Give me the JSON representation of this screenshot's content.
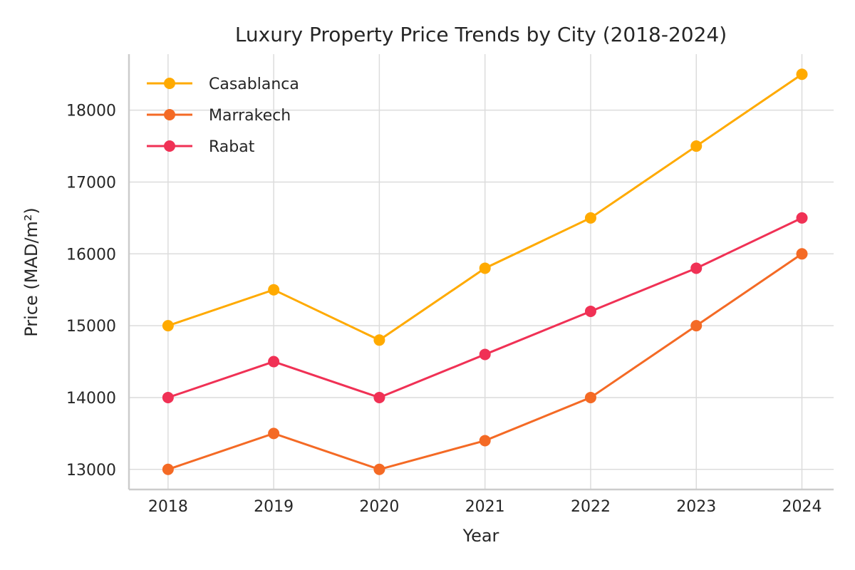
{
  "chart_data": {
    "type": "line",
    "title": "Luxury Property Price Trends by City (2018-2024)",
    "xlabel": "Year",
    "ylabel": "Price (MAD/m²)",
    "x": [
      2018,
      2019,
      2020,
      2021,
      2022,
      2023,
      2024
    ],
    "x_tick_labels": [
      "2018",
      "2019",
      "2020",
      "2021",
      "2022",
      "2023",
      "2024"
    ],
    "y_ticks": [
      13000,
      14000,
      15000,
      16000,
      17000,
      18000
    ],
    "y_tick_labels": [
      "13000",
      "14000",
      "15000",
      "16000",
      "17000",
      "18000"
    ],
    "ylim": [
      12720,
      18780
    ],
    "xlim": [
      2017.63,
      2024.3
    ],
    "grid": true,
    "legend_position": "top-left",
    "series": [
      {
        "name": "Casablanca",
        "color": "#FFAA00",
        "values": [
          15000,
          15500,
          14800,
          15800,
          16500,
          17500,
          18500
        ]
      },
      {
        "name": "Marrakech",
        "color": "#F46A25",
        "values": [
          13000,
          13500,
          13000,
          13400,
          14000,
          15000,
          16000
        ]
      },
      {
        "name": "Rabat",
        "color": "#F03155",
        "values": [
          14000,
          14500,
          14000,
          14600,
          15200,
          15800,
          16500
        ]
      }
    ]
  }
}
